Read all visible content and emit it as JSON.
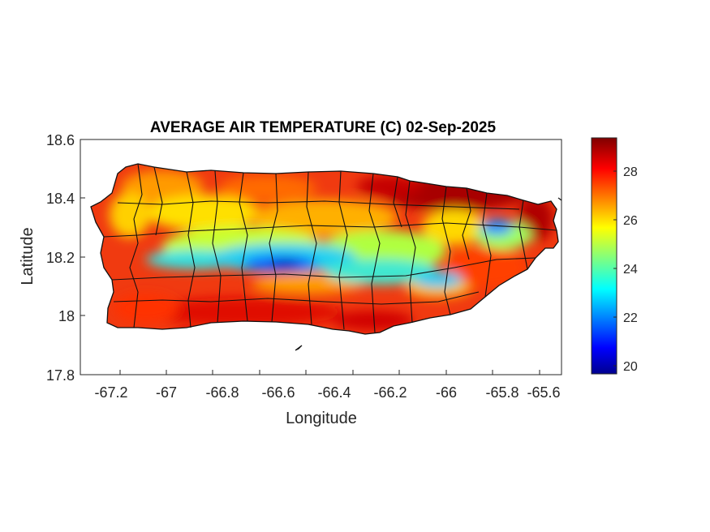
{
  "title": "AVERAGE AIR TEMPERATURE (C) 02-Sep-2025",
  "xlabel": "Longitude",
  "ylabel": "Latitude",
  "x_ticks": [
    "-67.2",
    "-67",
    "-66.8",
    "-66.6",
    "-66.4",
    "-66.2",
    "-66",
    "-65.8",
    "-65.6"
  ],
  "y_ticks": [
    "18.6",
    "18.4",
    "18.2",
    "18"
  ],
  "y_tick_bottom": "17.8",
  "colorbar": {
    "colormap": "jet",
    "min": 19.6,
    "max": 29.3,
    "ticks": [
      "28",
      "26",
      "24",
      "22",
      "20"
    ]
  },
  "chart_data": {
    "type": "heatmap",
    "title": "AVERAGE AIR TEMPERATURE (C) 02-Sep-2025",
    "xlabel": "Longitude",
    "ylabel": "Latitude",
    "xlim": [
      -67.3,
      -65.58
    ],
    "ylim": [
      17.8,
      18.6
    ],
    "x_ticks": [
      -67.2,
      -67,
      -66.8,
      -66.6,
      -66.4,
      -66.2,
      -66,
      -65.8,
      -65.6
    ],
    "y_ticks": [
      17.8,
      18,
      18.2,
      18.4,
      18.6
    ],
    "colorbar_ticks": [
      20,
      22,
      24,
      26,
      28
    ],
    "colorbar_range": [
      19.6,
      29.3
    ],
    "units": "C",
    "region": "Puerto Rico",
    "notes": "Cool core (20-24 C) along the central mountain range; 27-29 C along the coasts; warmest in the northeast."
  }
}
